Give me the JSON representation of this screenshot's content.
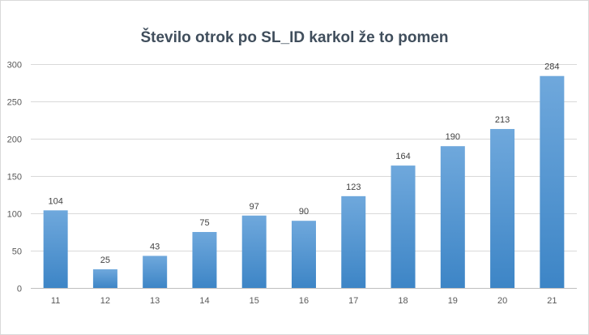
{
  "chart_data": {
    "type": "bar",
    "title": "Število otrok po SL_ID karkol že to pomen",
    "xlabel": "",
    "ylabel": "",
    "categories": [
      "11",
      "12",
      "13",
      "14",
      "15",
      "16",
      "17",
      "18",
      "19",
      "20",
      "21"
    ],
    "values": [
      104,
      25,
      43,
      75,
      97,
      90,
      123,
      164,
      190,
      213,
      284
    ],
    "ylim": [
      0,
      300
    ],
    "yticks": [
      0,
      50,
      100,
      150,
      200,
      250,
      300
    ],
    "grid": true,
    "legend": "none",
    "data_labels": true,
    "bar_color_top": "#6fa8dc",
    "bar_color_bottom": "#3d85c6"
  }
}
